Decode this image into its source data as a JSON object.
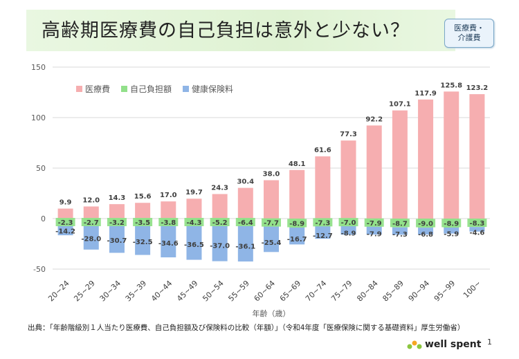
{
  "title": "高齢期医療費の自己負担は意外と少ない？",
  "badge": {
    "line1": "医療費・",
    "line2": "介護費"
  },
  "source": "出典：「年齢階級別１人当たり医療費、自己負担額及び保険料の比較（年額）」（令和4年度「医療保険に関する基礎資料」厚生労働省）",
  "logo": {
    "text": "well spent"
  },
  "page_number": "1",
  "colors": {
    "medical": "#f6aeb0",
    "self": "#92e08a",
    "insurance": "#8fb5e6"
  },
  "chart_data": {
    "type": "bar",
    "xlabel": "年齢（歳）",
    "ylabel": "",
    "ylim": [
      -50,
      150
    ],
    "yticks": [
      -50,
      0,
      50,
      100,
      150
    ],
    "grid": true,
    "legend_position": "top-left",
    "categories": [
      "20~24",
      "25~29",
      "30~34",
      "35~39",
      "40~44",
      "45~49",
      "50~54",
      "55~59",
      "60~64",
      "65~69",
      "70~74",
      "75~79",
      "80~84",
      "85~89",
      "90~94",
      "95~99",
      "100~"
    ],
    "series": [
      {
        "name": "医療費",
        "values": [
          9.9,
          12.0,
          14.3,
          15.6,
          17.0,
          19.7,
          24.3,
          30.4,
          38.0,
          48.1,
          61.6,
          77.3,
          92.2,
          107.1,
          117.9,
          125.8,
          123.2
        ]
      },
      {
        "name": "自己負担額",
        "values": [
          -2.3,
          -2.7,
          -3.2,
          -3.5,
          -3.8,
          -4.3,
          -5.2,
          -6.4,
          -7.7,
          -8.9,
          -7.3,
          -7.0,
          -7.9,
          -8.7,
          -9.0,
          -8.9,
          -8.3
        ]
      },
      {
        "name": "健康保険料",
        "values": [
          -14.2,
          -28.0,
          -30.7,
          -32.5,
          -34.6,
          -36.5,
          -37.0,
          -36.1,
          -25.4,
          -16.7,
          -12.7,
          -8.9,
          -7.9,
          -7.3,
          -6.8,
          -5.9,
          -4.6
        ]
      }
    ]
  }
}
